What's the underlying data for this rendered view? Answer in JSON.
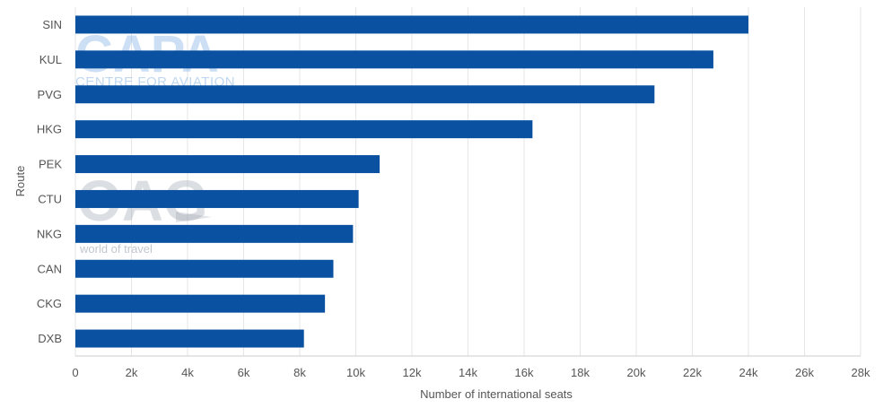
{
  "chart_data": {
    "type": "bar",
    "orientation": "horizontal",
    "categories": [
      "SIN",
      "KUL",
      "PVG",
      "HKG",
      "PEK",
      "CTU",
      "NKG",
      "CAN",
      "CKG",
      "DXB"
    ],
    "values": [
      24000,
      22750,
      20650,
      16300,
      10850,
      10100,
      9900,
      9200,
      8900,
      8150
    ],
    "xlabel": "Number of international seats",
    "ylabel": "Route",
    "xlim": [
      0,
      28000
    ],
    "xticks": [
      0,
      2000,
      4000,
      6000,
      8000,
      10000,
      12000,
      14000,
      16000,
      18000,
      20000,
      22000,
      24000,
      26000,
      28000
    ],
    "xtick_labels": [
      "0",
      "2k",
      "4k",
      "6k",
      "8k",
      "10k",
      "12k",
      "14k",
      "16k",
      "18k",
      "20k",
      "22k",
      "24k",
      "26k",
      "28k"
    ],
    "grid": "vertical",
    "bar_color": "#0a52a1",
    "grid_color": "#e6e6e6"
  },
  "watermarks": {
    "capa_logo": "CAPA",
    "capa_tagline": "CENTRE FOR AVIATION",
    "oag_logo": "OAG",
    "oag_tagline": "world of travel"
  }
}
